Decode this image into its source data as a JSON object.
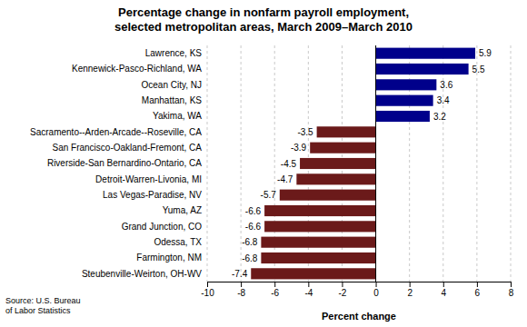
{
  "chart_data": {
    "type": "bar",
    "orientation": "horizontal",
    "title": "Percentage change in nonfarm payroll employment,\nselected metropolitan areas, March 2009–March 2010",
    "x_label": "Percent change",
    "annotations": [
      "Source: U.S. Bureau\nof Labor Statistics"
    ],
    "categories": [
      "Steubenville-Weirton, OH-WV",
      "Farmington, NM",
      "Odessa, TX",
      "Grand Junction, CO",
      "Yuma, AZ",
      "Las Vegas-Paradise, NV",
      "Detroit-Warren-Livonia, MI",
      "Riverside-San Bernardino-Ontario, CA",
      "San Francisco-Oakland-Fremont, CA",
      "Sacramento--Arden-Arcade--Roseville, CA",
      "Yakima, WA",
      "Manhattan, KS",
      "Ocean City, NJ",
      "Kennewick-Pasco-Richland, WA",
      "Lawrence, KS"
    ],
    "values": [
      -7.4,
      -6.8,
      -6.8,
      -6.6,
      -6.6,
      -5.7,
      -4.7,
      -4.5,
      -3.9,
      -3.5,
      3.2,
      3.4,
      3.6,
      5.5,
      5.9
    ],
    "colors": [
      "#6B1A1A",
      "#6B1A1A",
      "#6B1A1A",
      "#6B1A1A",
      "#6B1A1A",
      "#6B1A1A",
      "#6B1A1A",
      "#6B1A1A",
      "#6B1A1A",
      "#6B1A1A",
      "#00008B",
      "#00008B",
      "#00008B",
      "#00008B",
      "#00008B"
    ],
    "xlim": [
      -10,
      8
    ],
    "xticks": [
      -10,
      -8,
      -6,
      -4,
      -2,
      0,
      2,
      4,
      6,
      8
    ],
    "grid": true,
    "data_labels": true
  }
}
